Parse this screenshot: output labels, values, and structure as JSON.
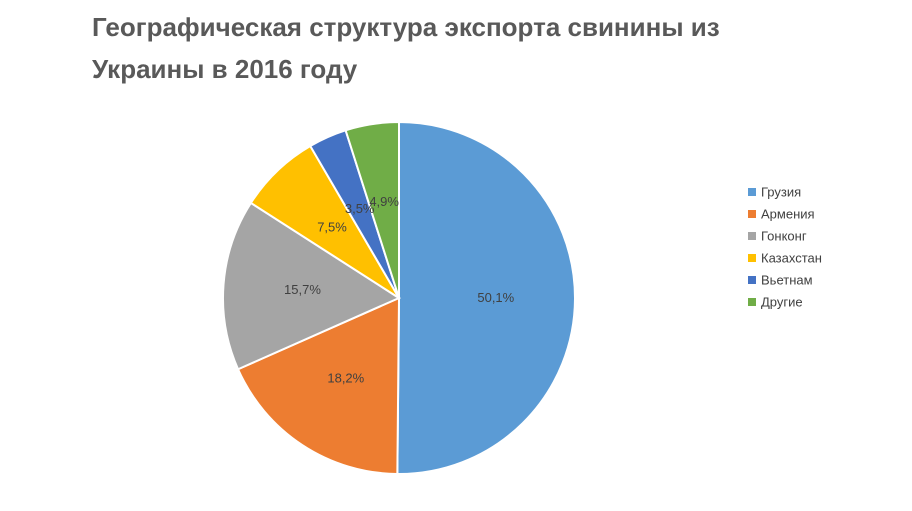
{
  "chart_data": {
    "type": "pie",
    "title": "Географическая структура экспорта свинины из Украины в 2016 году",
    "categories": [
      "Грузия",
      "Армения",
      "Гонконг",
      "Казахстан",
      "Вьетнам",
      "Другие"
    ],
    "values": [
      50.1,
      18.2,
      15.7,
      7.5,
      3.5,
      4.9
    ],
    "value_labels": [
      "50,1%",
      "18,2%",
      "15,7%",
      "7,5%",
      "3,5%",
      "4,9%"
    ],
    "colors": [
      "#5b9bd5",
      "#ed7d31",
      "#a5a5a5",
      "#ffc000",
      "#4472c4",
      "#70ad47"
    ],
    "legend": "right"
  }
}
